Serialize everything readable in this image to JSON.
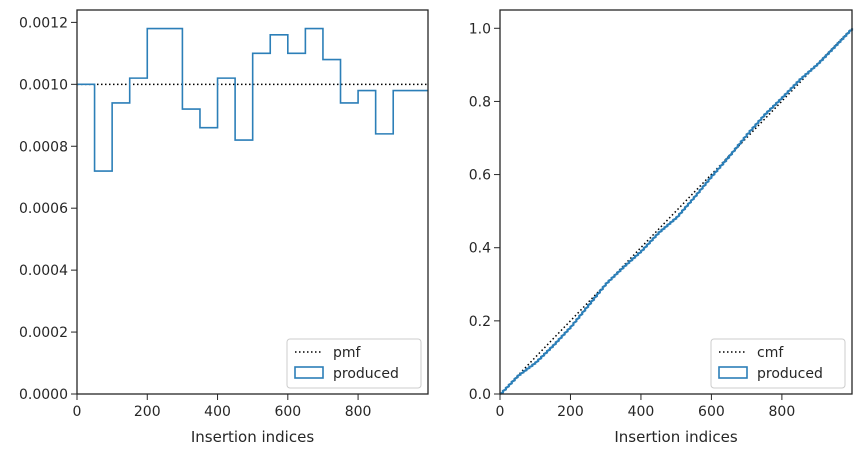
{
  "colors": {
    "produced": "#2c7fb8",
    "reference": "#000000",
    "axes": "#262626"
  },
  "chart_data": [
    {
      "type": "step",
      "xlabel": "Insertion indices",
      "ylabel": "",
      "xlim": [
        0,
        999
      ],
      "ylim": [
        0,
        0.00124
      ],
      "xticks": [
        0,
        200,
        400,
        600,
        800
      ],
      "yticks": [
        0.0,
        0.0002,
        0.0004,
        0.0006,
        0.0008,
        0.001,
        0.0012
      ],
      "ytick_labels": [
        "0.0000",
        "0.0002",
        "0.0004",
        "0.0006",
        "0.0008",
        "0.0010",
        "0.0012"
      ],
      "legend_position": "lower-right",
      "reference": {
        "name": "pmf",
        "style": "dotted",
        "value": 0.001
      },
      "series": [
        {
          "name": "produced",
          "style": "step-histogram",
          "bin_edges": [
            0,
            50,
            100,
            150,
            200,
            250,
            300,
            350,
            400,
            450,
            500,
            550,
            600,
            650,
            700,
            750,
            800,
            850,
            900,
            950,
            999
          ],
          "values": [
            0.001,
            0.00072,
            0.00094,
            0.00102,
            0.00118,
            0.00118,
            0.00092,
            0.00086,
            0.00102,
            0.00082,
            0.0011,
            0.00116,
            0.0011,
            0.00118,
            0.00108,
            0.00094,
            0.00098,
            0.00084,
            0.00098,
            0.00098
          ]
        }
      ]
    },
    {
      "type": "step",
      "xlabel": "Insertion indices",
      "ylabel": "",
      "xlim": [
        0,
        999
      ],
      "ylim": [
        0,
        1.05
      ],
      "xticks": [
        0,
        200,
        400,
        600,
        800
      ],
      "yticks": [
        0.0,
        0.2,
        0.4,
        0.6,
        0.8,
        1.0
      ],
      "ytick_labels": [
        "0.0",
        "0.2",
        "0.4",
        "0.6",
        "0.8",
        "1.0"
      ],
      "legend_position": "lower-right",
      "reference": {
        "name": "cmf",
        "style": "dotted",
        "from": [
          0,
          0
        ],
        "to": [
          999,
          1.0
        ]
      },
      "series": [
        {
          "name": "produced",
          "style": "cumulative-step",
          "x": [
            0,
            50,
            100,
            150,
            200,
            250,
            300,
            350,
            400,
            450,
            500,
            550,
            600,
            650,
            700,
            750,
            800,
            850,
            900,
            950,
            999
          ],
          "y": [
            0.0,
            0.05,
            0.086,
            0.133,
            0.184,
            0.243,
            0.302,
            0.348,
            0.391,
            0.442,
            0.483,
            0.538,
            0.596,
            0.651,
            0.71,
            0.764,
            0.811,
            0.86,
            0.902,
            0.951,
            1.0
          ]
        }
      ]
    }
  ]
}
